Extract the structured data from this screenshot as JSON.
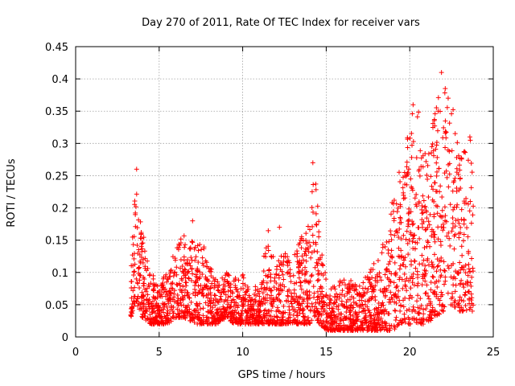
{
  "chart_data": {
    "type": "scatter",
    "title": "Day 270 of 2011, Rate Of TEC Index for receiver vars",
    "xlabel": "GPS time / hours",
    "ylabel": "ROTI / TECUs",
    "xlim": [
      0,
      25
    ],
    "ylim": [
      0,
      0.45
    ],
    "xticks": [
      "0",
      "5",
      "10",
      "15",
      "20",
      "25"
    ],
    "yticks": [
      "0",
      "0.05",
      "0.1",
      "0.15",
      "0.2",
      "0.25",
      "0.3",
      "0.35",
      "0.4",
      "0.45"
    ],
    "grid": true,
    "marker": "plus",
    "color": "#ff0000",
    "envelope": {
      "hours": [
        3.3,
        3.6,
        4.0,
        4.5,
        5.0,
        5.5,
        6.0,
        6.5,
        7.0,
        7.5,
        8.0,
        8.5,
        9.0,
        9.5,
        10.0,
        10.5,
        11.0,
        11.5,
        12.0,
        12.5,
        13.0,
        13.5,
        14.0,
        14.3,
        14.6,
        15.0,
        15.5,
        16.0,
        16.5,
        17.0,
        17.5,
        18.0,
        18.5,
        19.0,
        19.5,
        20.0,
        20.5,
        21.0,
        21.5,
        22.0,
        22.5,
        23.0,
        23.5,
        23.8
      ],
      "low": [
        0.03,
        0.05,
        0.03,
        0.02,
        0.02,
        0.02,
        0.03,
        0.03,
        0.02,
        0.02,
        0.02,
        0.02,
        0.03,
        0.02,
        0.02,
        0.02,
        0.02,
        0.02,
        0.02,
        0.02,
        0.02,
        0.02,
        0.02,
        0.03,
        0.02,
        0.01,
        0.01,
        0.01,
        0.01,
        0.01,
        0.01,
        0.01,
        0.01,
        0.01,
        0.02,
        0.02,
        0.02,
        0.02,
        0.03,
        0.04,
        0.05,
        0.04,
        0.04,
        0.04
      ],
      "high": [
        0.1,
        0.26,
        0.17,
        0.1,
        0.09,
        0.1,
        0.14,
        0.16,
        0.15,
        0.16,
        0.11,
        0.09,
        0.1,
        0.09,
        0.1,
        0.07,
        0.09,
        0.17,
        0.11,
        0.14,
        0.12,
        0.16,
        0.19,
        0.27,
        0.17,
        0.09,
        0.08,
        0.09,
        0.09,
        0.08,
        0.1,
        0.12,
        0.15,
        0.22,
        0.28,
        0.34,
        0.36,
        0.27,
        0.35,
        0.41,
        0.37,
        0.28,
        0.31,
        0.31
      ]
    },
    "notable_points": [
      {
        "x": 3.65,
        "y": 0.26
      },
      {
        "x": 14.2,
        "y": 0.27
      },
      {
        "x": 20.2,
        "y": 0.36
      },
      {
        "x": 21.9,
        "y": 0.41
      },
      {
        "x": 22.3,
        "y": 0.37
      },
      {
        "x": 21.7,
        "y": 0.35
      },
      {
        "x": 23.6,
        "y": 0.31
      },
      {
        "x": 12.2,
        "y": 0.17
      },
      {
        "x": 7.0,
        "y": 0.18
      }
    ]
  }
}
